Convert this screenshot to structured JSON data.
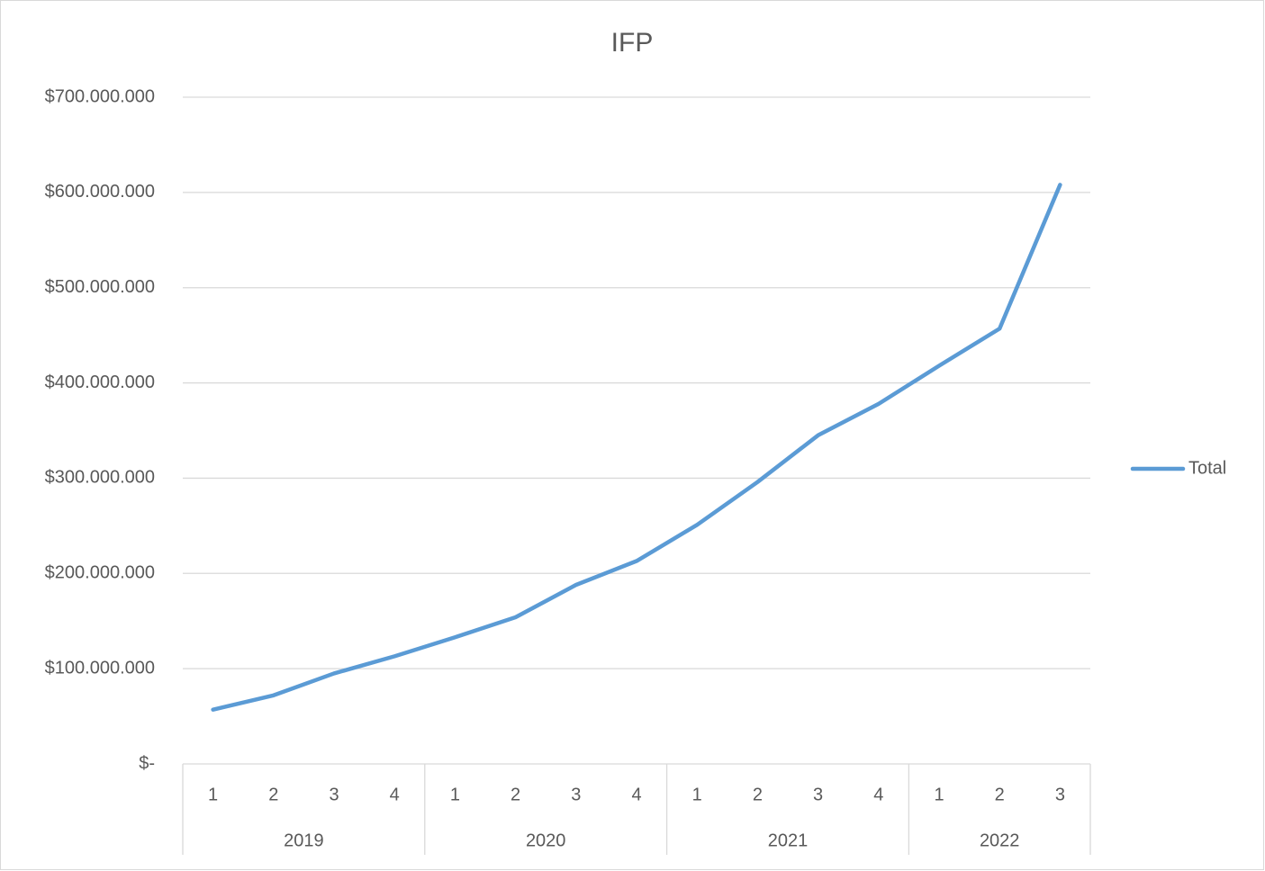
{
  "chart_data": {
    "type": "line",
    "title": "IFP",
    "category_groups": [
      {
        "label": "2019",
        "categories": [
          "1",
          "2",
          "3",
          "4"
        ]
      },
      {
        "label": "2020",
        "categories": [
          "1",
          "2",
          "3",
          "4"
        ]
      },
      {
        "label": "2021",
        "categories": [
          "1",
          "2",
          "3",
          "4"
        ]
      },
      {
        "label": "2022",
        "categories": [
          "1",
          "2",
          "3"
        ]
      }
    ],
    "series": [
      {
        "name": "Total",
        "color": "#5b9bd5",
        "values": [
          57000000,
          72000000,
          95000000,
          113000000,
          133000000,
          154000000,
          188000000,
          213000000,
          251000000,
          296000000,
          345000000,
          378000000,
          418000000,
          457000000,
          608000000
        ]
      }
    ],
    "ylim": [
      0,
      700000000
    ],
    "yticks": [
      {
        "value": 0,
        "label": "$-"
      },
      {
        "value": 100000000,
        "label": "$100.000.000"
      },
      {
        "value": 200000000,
        "label": "$200.000.000"
      },
      {
        "value": 300000000,
        "label": "$300.000.000"
      },
      {
        "value": 400000000,
        "label": "$400.000.000"
      },
      {
        "value": 500000000,
        "label": "$500.000.000"
      },
      {
        "value": 600000000,
        "label": "$600.000.000"
      },
      {
        "value": 700000000,
        "label": "$700.000.000"
      }
    ],
    "grid": true,
    "legend": "right"
  }
}
